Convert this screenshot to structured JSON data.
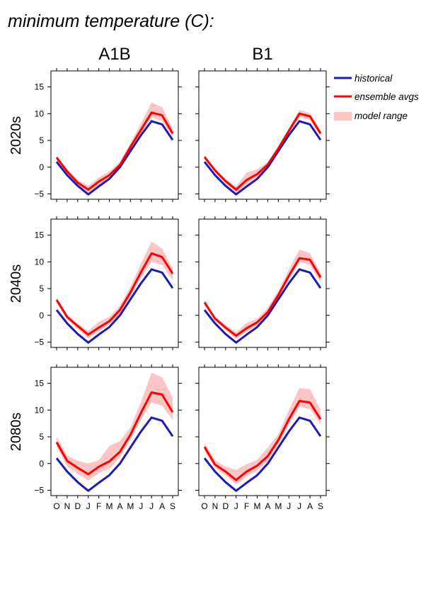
{
  "title": "minimum temperature (C):",
  "columns": [
    "A1B",
    "B1"
  ],
  "rows": [
    "2020s",
    "2040s",
    "2080s"
  ],
  "legend": {
    "historical": "historical",
    "ensemble": "ensemble avgs",
    "range": "model range"
  },
  "colors": {
    "historical": "#1c1cb4",
    "ensemble": "#ff0000",
    "range": "#ffc4c4"
  },
  "chart_data": {
    "type": "line",
    "categories": [
      "O",
      "N",
      "D",
      "J",
      "F",
      "M",
      "A",
      "M",
      "J",
      "J",
      "A",
      "S"
    ],
    "yticks": [
      -5,
      0,
      5,
      10,
      15
    ],
    "ylim": [
      -6,
      18
    ],
    "historical": [
      1.0,
      -1.5,
      -3.5,
      -5.1,
      -3.6,
      -2.2,
      0.0,
      3.0,
      6.0,
      8.6,
      8.0,
      5.1
    ],
    "panels": [
      {
        "row": "2020s",
        "col": "A1B",
        "ensemble": [
          1.8,
          -0.8,
          -2.9,
          -4.2,
          -2.7,
          -1.5,
          0.4,
          3.8,
          7.0,
          10.2,
          9.7,
          6.3
        ],
        "range_low": [
          1.3,
          -1.2,
          -3.3,
          -4.8,
          -3.3,
          -2.0,
          -0.1,
          3.2,
          6.3,
          9.4,
          8.6,
          5.6
        ],
        "range_high": [
          2.1,
          -0.3,
          -2.4,
          -3.5,
          -1.9,
          -0.8,
          1.0,
          4.5,
          8.2,
          12.1,
          11.2,
          7.3
        ]
      },
      {
        "row": "2020s",
        "col": "B1",
        "ensemble": [
          1.9,
          -0.6,
          -2.6,
          -4.2,
          -2.4,
          -1.3,
          0.5,
          3.5,
          6.8,
          10.0,
          9.5,
          6.3
        ],
        "range_low": [
          1.5,
          -1.0,
          -3.0,
          -4.8,
          -3.2,
          -1.9,
          -0.1,
          3.0,
          6.3,
          9.4,
          8.8,
          5.8
        ],
        "range_high": [
          2.3,
          -0.2,
          -2.2,
          -3.6,
          -1.0,
          -0.4,
          1.0,
          4.0,
          7.3,
          10.7,
          10.1,
          6.9
        ]
      },
      {
        "row": "2040s",
        "col": "A1B",
        "ensemble": [
          2.9,
          -0.3,
          -2.0,
          -3.6,
          -2.3,
          -1.1,
          1.0,
          4.3,
          8.1,
          11.6,
          10.9,
          7.8
        ],
        "range_low": [
          2.4,
          -0.8,
          -2.5,
          -4.3,
          -3.0,
          -1.7,
          0.3,
          3.6,
          7.1,
          10.0,
          9.4,
          6.6
        ],
        "range_high": [
          3.3,
          0.2,
          -1.5,
          -2.9,
          -1.2,
          -0.3,
          1.8,
          5.4,
          9.7,
          13.8,
          12.5,
          8.8
        ]
      },
      {
        "row": "2040s",
        "col": "B1",
        "ensemble": [
          2.4,
          -0.6,
          -2.3,
          -3.8,
          -2.4,
          -1.3,
          0.6,
          3.8,
          7.4,
          10.7,
          10.4,
          7.1
        ],
        "range_low": [
          2.0,
          -1.0,
          -2.8,
          -4.4,
          -3.0,
          -1.9,
          0.0,
          3.2,
          6.8,
          10.0,
          9.4,
          6.2
        ],
        "range_high": [
          2.8,
          -0.2,
          -1.8,
          -3.2,
          -1.4,
          -0.6,
          1.4,
          4.6,
          8.6,
          12.3,
          11.6,
          7.9
        ]
      },
      {
        "row": "2080s",
        "col": "A1B",
        "ensemble": [
          4.0,
          0.5,
          -0.8,
          -2.0,
          -0.6,
          0.4,
          2.2,
          5.4,
          9.5,
          13.3,
          12.9,
          9.6
        ],
        "range_low": [
          3.2,
          -0.6,
          -1.9,
          -3.2,
          -1.8,
          -1.0,
          1.2,
          4.6,
          8.2,
          11.4,
          10.8,
          8.2
        ],
        "range_high": [
          5.0,
          1.5,
          0.5,
          0.0,
          0.6,
          3.3,
          4.2,
          6.8,
          11.5,
          17.0,
          16.1,
          12.3
        ]
      },
      {
        "row": "2080s",
        "col": "B1",
        "ensemble": [
          3.1,
          -0.2,
          -1.5,
          -3.1,
          -1.5,
          -0.4,
          1.4,
          4.4,
          8.3,
          11.7,
          11.4,
          8.3
        ],
        "range_low": [
          2.4,
          -0.8,
          -2.2,
          -3.9,
          -2.4,
          -1.3,
          0.5,
          3.6,
          7.3,
          10.6,
          10.2,
          7.3
        ],
        "range_high": [
          3.8,
          0.6,
          -0.6,
          -1.2,
          -0.1,
          0.7,
          3.0,
          5.5,
          10.0,
          14.1,
          13.9,
          10.0
        ]
      }
    ]
  }
}
